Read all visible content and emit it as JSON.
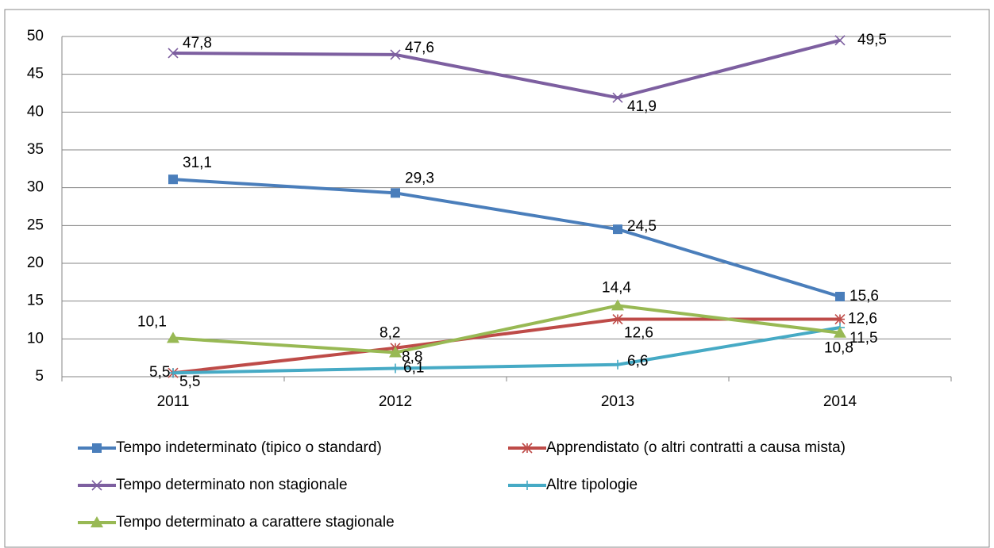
{
  "chart_data": {
    "type": "line",
    "categories": [
      "2011",
      "2012",
      "2013",
      "2014"
    ],
    "ylim": [
      5,
      50
    ],
    "yticks": [
      5,
      10,
      15,
      20,
      25,
      30,
      35,
      40,
      45,
      50
    ],
    "grid": true,
    "series": [
      {
        "name": "Tempo indeterminato (tipico o standard)",
        "color": "#4a7ebb",
        "marker": "square",
        "values": [
          31.1,
          29.3,
          24.5,
          15.6
        ],
        "value_labels": [
          "31,1",
          "29,3",
          "24,5",
          "15,6"
        ]
      },
      {
        "name": "Apprendistato (o altri contratti a causa mista)",
        "color": "#be4b48",
        "marker": "asterisk",
        "values": [
          5.5,
          8.8,
          12.6,
          12.6
        ],
        "value_labels": [
          "5,5",
          "8,8",
          "12,6",
          "12,6"
        ]
      },
      {
        "name": "Tempo determinato non stagionale",
        "color": "#7d5fa0",
        "marker": "x",
        "values": [
          47.8,
          47.6,
          41.9,
          49.5
        ],
        "value_labels": [
          "47,8",
          "47,6",
          "41,9",
          "49,5"
        ]
      },
      {
        "name": "Altre tipologie",
        "color": "#46aac5",
        "marker": "plus",
        "values": [
          5.5,
          6.1,
          6.6,
          11.5
        ],
        "value_labels": [
          "5,5",
          "6,1",
          "6,6",
          "11,5"
        ]
      },
      {
        "name": "Tempo determinato a carattere stagionale",
        "color": "#98b954",
        "marker": "triangle",
        "values": [
          10.1,
          8.2,
          14.4,
          10.8
        ],
        "value_labels": [
          "10,1",
          "8,2",
          "14,4",
          "10,8"
        ]
      }
    ]
  }
}
